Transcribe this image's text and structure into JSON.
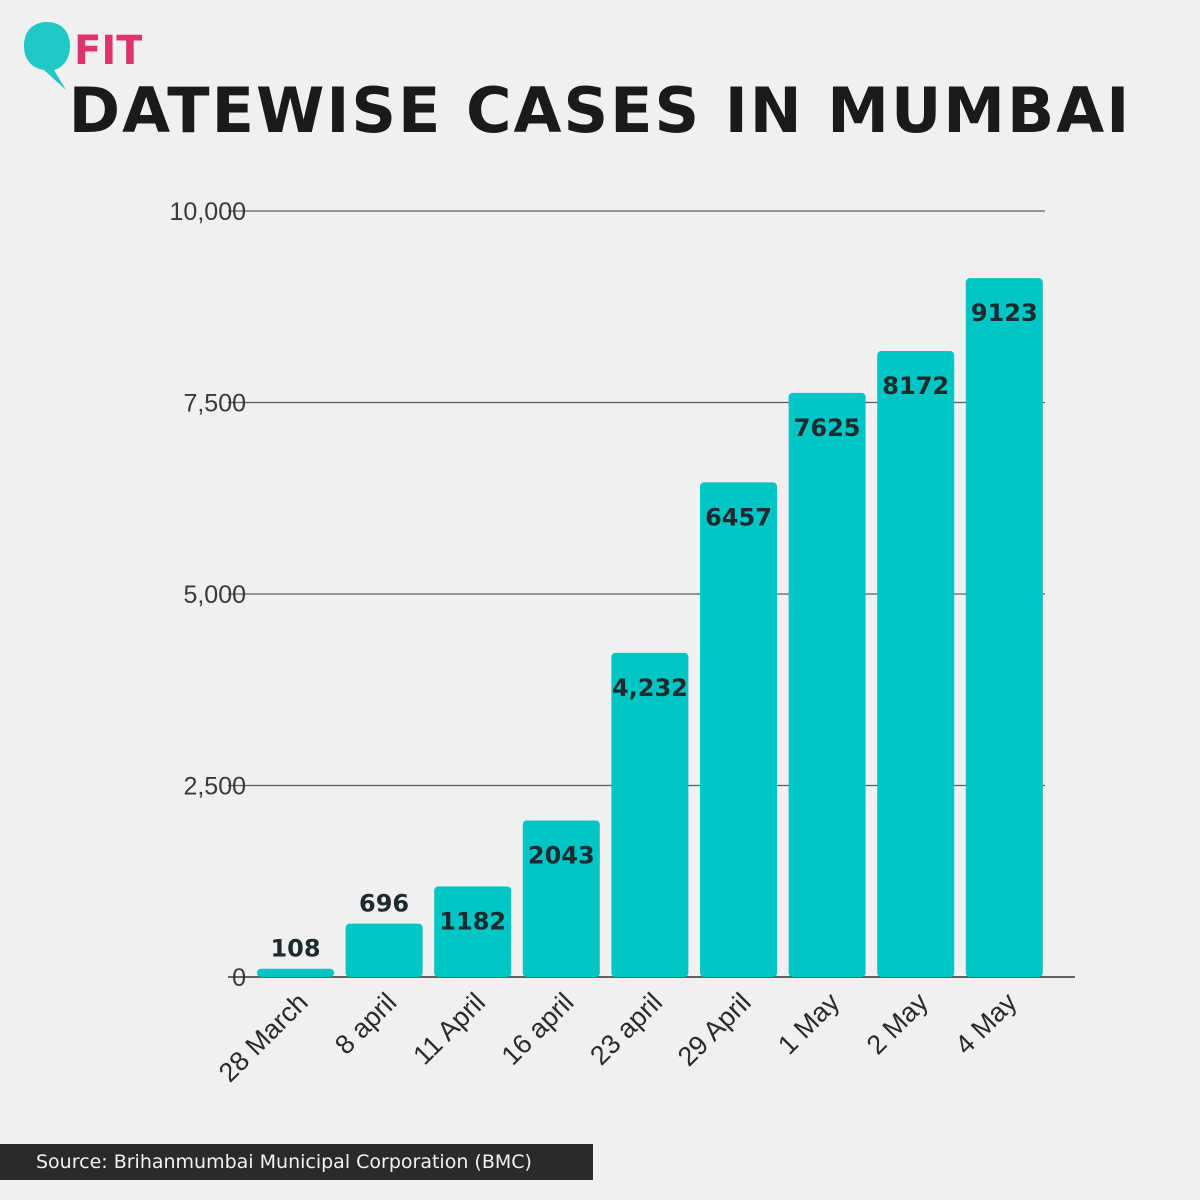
{
  "brand": {
    "name": "FIT",
    "icon": "speech-bubble-logo",
    "colors": {
      "bubble": "#1fc8c4",
      "text": "#e0336e"
    }
  },
  "source_text": "Source: Brihanmumbai Municipal Corporation (BMC)",
  "chart_data": {
    "type": "bar",
    "title": "DATEWISE CASES IN MUMBAI",
    "xlabel": "",
    "ylabel": "",
    "ylim": [
      0,
      10000
    ],
    "yticks": [
      0,
      2500,
      5000,
      7500,
      10000
    ],
    "ytick_labels": [
      "0",
      "2,500",
      "5,000",
      "7,500",
      "10,000"
    ],
    "grid": true,
    "legend": "none",
    "bar_color": "#00c5c5",
    "categories": [
      "28 March",
      "8 april",
      "11 April",
      "16 april",
      "23 april",
      "29 April",
      "1 May",
      "2 May",
      "4 May"
    ],
    "values": [
      108,
      696,
      1182,
      2043,
      4232,
      6457,
      7625,
      8172,
      9123
    ],
    "value_labels": [
      "108",
      "696",
      "1182",
      "2043",
      "4,232",
      "6457",
      "7625",
      "8172",
      "9123"
    ]
  }
}
